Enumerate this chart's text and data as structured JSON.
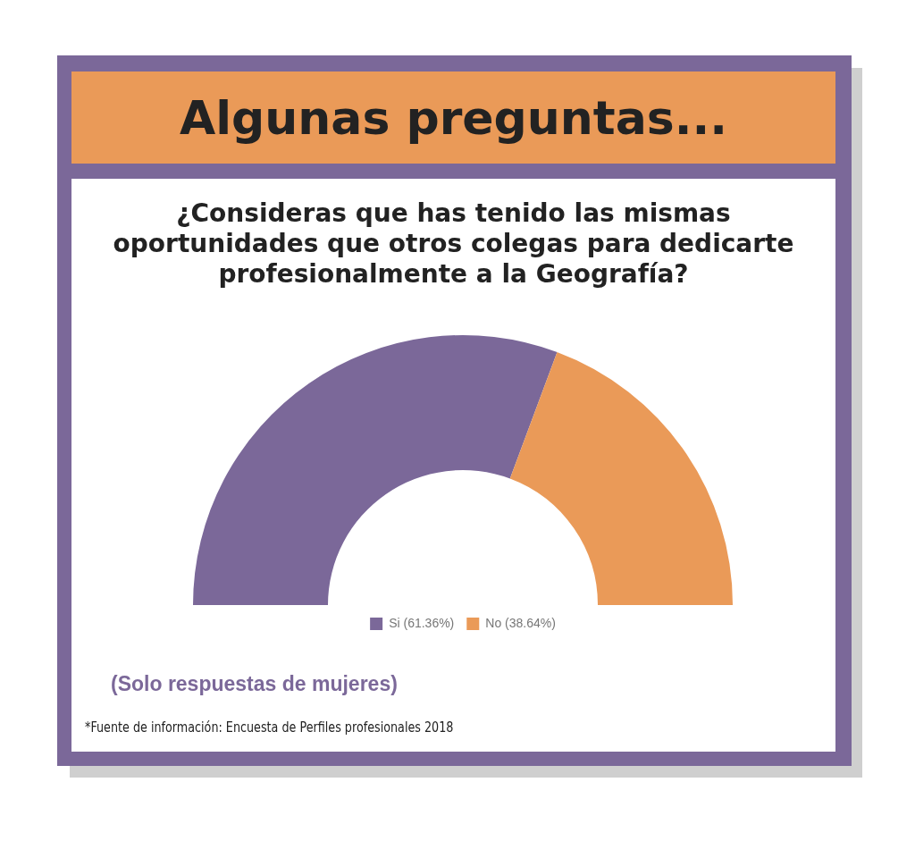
{
  "chart_data": {
    "type": "donut",
    "title": "Algunas preguntas...",
    "subtitle": "¿Consideras que has tenido las mismas oportunidades que otros colegas para dedicarte profesionalmente a la Geografía?",
    "categories": [
      "Si (61.36%)",
      "No (38.64%)"
    ],
    "values": [
      61.36,
      38.64
    ],
    "colors": [
      "#7b6899",
      "#ea9a58"
    ],
    "legend": "bottom",
    "annotations": [
      "(Solo respuestas de mujeres)",
      "*Fuente de información: Encuesta de Perfiles profesionales 2018"
    ]
  }
}
